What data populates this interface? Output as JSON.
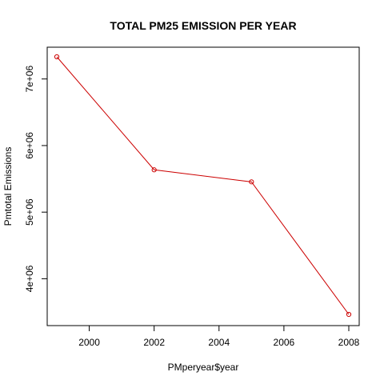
{
  "chart_data": {
    "type": "line",
    "title": "TOTAL PM25 EMISSION PER YEAR",
    "xlabel": "PMperyear$year",
    "ylabel": "Pmtotal Emissions",
    "x": [
      1999,
      2002,
      2005,
      2008
    ],
    "series": [
      {
        "values": [
          7332967,
          5635780,
          5454703,
          3464206
        ]
      }
    ],
    "xlim": [
      1999,
      2008
    ],
    "ylim": [
      3464206,
      7332967
    ],
    "x_ticks": [
      2000,
      2002,
      2004,
      2006,
      2008
    ],
    "x_tick_labels": [
      "2000",
      "2002",
      "2004",
      "2006",
      "2008"
    ],
    "y_ticks": [
      4000000,
      5000000,
      6000000,
      7000000
    ],
    "y_tick_labels": [
      "4e+06",
      "5e+06",
      "6e+06",
      "7e+06"
    ],
    "line_color": "#cc0000",
    "point_style": "open-circle",
    "grid": false,
    "legend": "none"
  }
}
